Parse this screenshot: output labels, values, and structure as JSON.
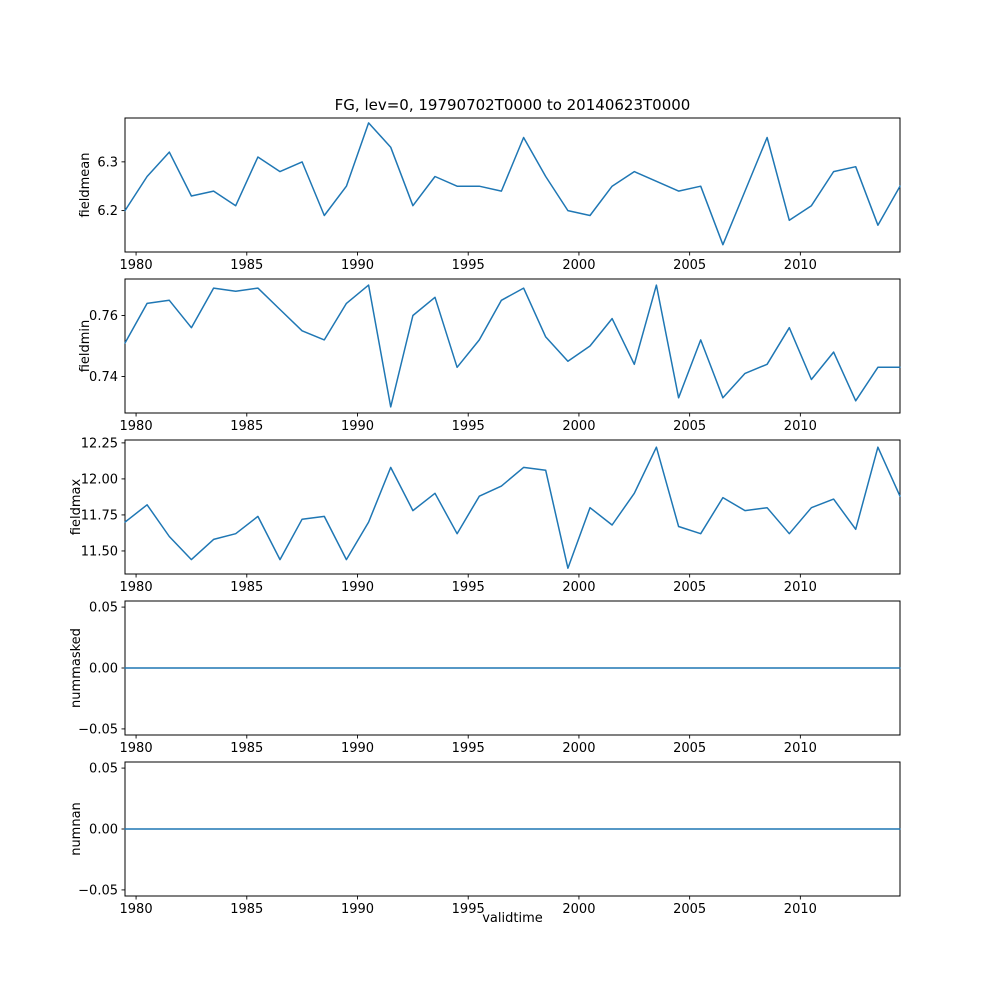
{
  "figure": {
    "title": "FG, lev=0, 19790702T0000 to 20140623T0000",
    "xlabel": "validtime",
    "line_color": "#1f77b4",
    "background": "#ffffff",
    "axes_color": "#000000"
  },
  "chart_data": [
    {
      "type": "line",
      "ylabel": "fieldmean",
      "x_start": 1979.5,
      "x_step": 1,
      "xlim": [
        1979.5,
        2014.5
      ],
      "ylim": [
        6.115,
        6.39
      ],
      "yticks": [
        6.2,
        6.3
      ],
      "ytick_labels": [
        "6.2",
        "6.3"
      ],
      "xticks": [
        1980,
        1985,
        1990,
        1995,
        2000,
        2005,
        2010
      ],
      "xtick_labels": [
        "1980",
        "1985",
        "1990",
        "1995",
        "2000",
        "2005",
        "2010"
      ],
      "values": [
        6.2,
        6.27,
        6.32,
        6.23,
        6.24,
        6.21,
        6.31,
        6.28,
        6.3,
        6.19,
        6.25,
        6.38,
        6.33,
        6.21,
        6.27,
        6.25,
        6.25,
        6.24,
        6.35,
        6.27,
        6.2,
        6.19,
        6.25,
        6.28,
        6.26,
        6.24,
        6.25,
        6.13,
        6.24,
        6.35,
        6.18,
        6.21,
        6.28,
        6.29,
        6.17,
        6.25
      ]
    },
    {
      "type": "line",
      "ylabel": "fieldmin",
      "x_start": 1979.5,
      "x_step": 1,
      "xlim": [
        1979.5,
        2014.5
      ],
      "ylim": [
        0.728,
        0.772
      ],
      "yticks": [
        0.74,
        0.76
      ],
      "ytick_labels": [
        "0.74",
        "0.76"
      ],
      "xticks": [
        1980,
        1985,
        1990,
        1995,
        2000,
        2005,
        2010
      ],
      "xtick_labels": [
        "1980",
        "1985",
        "1990",
        "1995",
        "2000",
        "2005",
        "2010"
      ],
      "values": [
        0.751,
        0.764,
        0.765,
        0.756,
        0.769,
        0.768,
        0.769,
        0.762,
        0.755,
        0.752,
        0.764,
        0.77,
        0.73,
        0.76,
        0.766,
        0.743,
        0.752,
        0.765,
        0.769,
        0.753,
        0.745,
        0.75,
        0.759,
        0.744,
        0.77,
        0.733,
        0.752,
        0.733,
        0.741,
        0.744,
        0.756,
        0.739,
        0.748,
        0.732,
        0.743,
        0.743
      ]
    },
    {
      "type": "line",
      "ylabel": "fieldmax",
      "x_start": 1979.5,
      "x_step": 1,
      "xlim": [
        1979.5,
        2014.5
      ],
      "ylim": [
        11.34,
        12.27
      ],
      "yticks": [
        11.5,
        11.75,
        12.0,
        12.25
      ],
      "ytick_labels": [
        "11.50",
        "11.75",
        "12.00",
        "12.25"
      ],
      "xticks": [
        1980,
        1985,
        1990,
        1995,
        2000,
        2005,
        2010
      ],
      "xtick_labels": [
        "1980",
        "1985",
        "1990",
        "1995",
        "2000",
        "2005",
        "2010"
      ],
      "values": [
        11.7,
        11.82,
        11.6,
        11.44,
        11.58,
        11.62,
        11.74,
        11.44,
        11.72,
        11.74,
        11.44,
        11.7,
        12.08,
        11.78,
        11.9,
        11.62,
        11.88,
        11.95,
        12.08,
        12.06,
        11.38,
        11.8,
        11.68,
        11.9,
        12.22,
        11.67,
        11.62,
        11.87,
        11.78,
        11.8,
        11.62,
        11.8,
        11.86,
        11.65,
        12.22,
        11.88
      ]
    },
    {
      "type": "line",
      "ylabel": "nummasked",
      "x_start": 1979.5,
      "x_step": 1,
      "xlim": [
        1979.5,
        2014.5
      ],
      "ylim": [
        -0.055,
        0.055
      ],
      "yticks": [
        -0.05,
        0.0,
        0.05
      ],
      "ytick_labels": [
        "−0.05",
        "0.00",
        "0.05"
      ],
      "xticks": [
        1980,
        1985,
        1990,
        1995,
        2000,
        2005,
        2010
      ],
      "xtick_labels": [
        "1980",
        "1985",
        "1990",
        "1995",
        "2000",
        "2005",
        "2010"
      ],
      "values": [
        0,
        0,
        0,
        0,
        0,
        0,
        0,
        0,
        0,
        0,
        0,
        0,
        0,
        0,
        0,
        0,
        0,
        0,
        0,
        0,
        0,
        0,
        0,
        0,
        0,
        0,
        0,
        0,
        0,
        0,
        0,
        0,
        0,
        0,
        0,
        0
      ]
    },
    {
      "type": "line",
      "ylabel": "numnan",
      "x_start": 1979.5,
      "x_step": 1,
      "xlim": [
        1979.5,
        2014.5
      ],
      "ylim": [
        -0.055,
        0.055
      ],
      "yticks": [
        -0.05,
        0.0,
        0.05
      ],
      "ytick_labels": [
        "−0.05",
        "0.00",
        "0.05"
      ],
      "xticks": [
        1980,
        1985,
        1990,
        1995,
        2000,
        2005,
        2010
      ],
      "xtick_labels": [
        "1980",
        "1985",
        "1990",
        "1995",
        "2000",
        "2005",
        "2010"
      ],
      "values": [
        0,
        0,
        0,
        0,
        0,
        0,
        0,
        0,
        0,
        0,
        0,
        0,
        0,
        0,
        0,
        0,
        0,
        0,
        0,
        0,
        0,
        0,
        0,
        0,
        0,
        0,
        0,
        0,
        0,
        0,
        0,
        0,
        0,
        0,
        0,
        0
      ]
    }
  ]
}
